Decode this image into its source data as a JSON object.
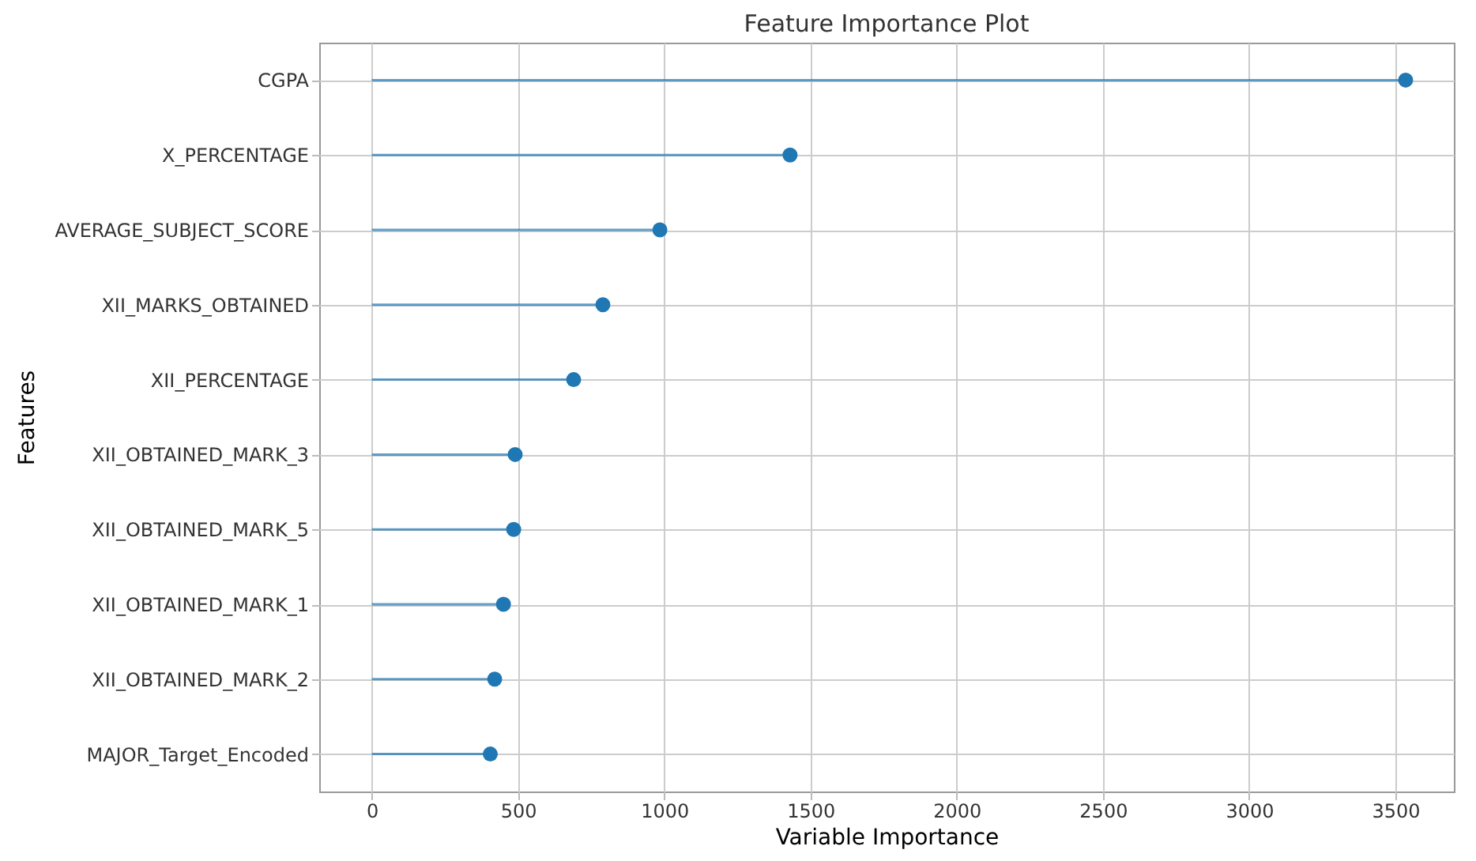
{
  "chart_data": {
    "type": "lollipop",
    "orientation": "horizontal",
    "title": "Feature Importance Plot",
    "xlabel": "Variable Importance",
    "ylabel": "Features",
    "categories": [
      "CGPA",
      "X_PERCENTAGE",
      "AVERAGE_SUBJECT_SCORE",
      "XII_MARKS_OBTAINED",
      "XII_PERCENTAGE",
      "XII_OBTAINED_MARK_3",
      "XII_OBTAINED_MARK_5",
      "XII_OBTAINED_MARK_1",
      "XII_OBTAINED_MARK_2",
      "MAJOR_Target_Encoded"
    ],
    "values": [
      3535,
      1430,
      985,
      790,
      690,
      490,
      485,
      450,
      420,
      405
    ],
    "color": "#1f77b4",
    "xlim": [
      -180,
      3700
    ],
    "xticks": [
      0,
      500,
      1000,
      1500,
      2000,
      2500,
      3000,
      3500
    ],
    "grid": true,
    "marker": "circle"
  }
}
